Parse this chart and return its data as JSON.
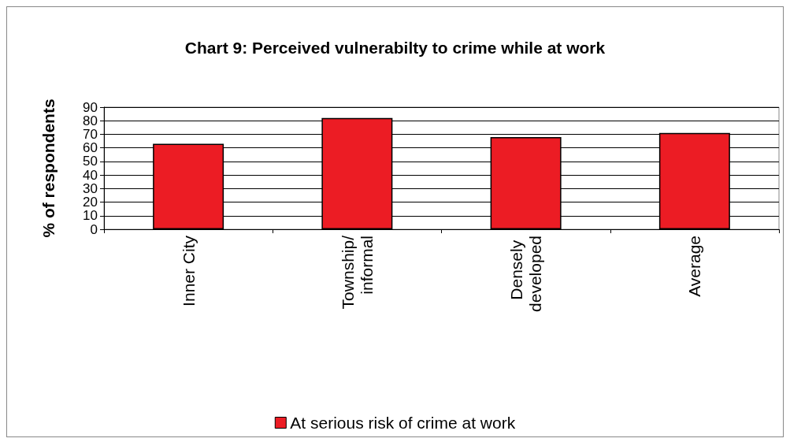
{
  "chart_data": {
    "type": "bar",
    "title": "Chart 9: Perceived vulnerabilty to crime while at work",
    "ylabel": "% of respondents",
    "categories": [
      "Inner City",
      "Township/informal",
      "Densely developed",
      "Average"
    ],
    "series": [
      {
        "name": "At serious risk of crime at work",
        "color": "#ec1c24",
        "values": [
          63,
          82,
          68,
          71
        ]
      }
    ],
    "ylim": [
      0,
      90
    ],
    "yticks": [
      0,
      10,
      20,
      30,
      40,
      50,
      60,
      70,
      80,
      90
    ],
    "grid": "y",
    "legend": "bottom"
  }
}
